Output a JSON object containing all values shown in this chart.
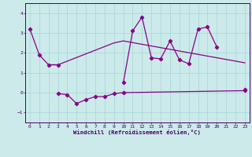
{
  "xlabel": "Windchill (Refroidissement éolien,°C)",
  "line1_x": [
    0,
    1,
    2,
    3,
    10,
    11,
    12,
    13,
    14,
    15,
    16,
    17,
    18,
    19,
    20,
    23
  ],
  "line1_y": [
    3.2,
    1.9,
    1.4,
    1.4,
    0.5,
    3.1,
    3.8,
    1.75,
    1.7,
    2.6,
    1.65,
    1.45,
    3.2,
    3.3,
    2.3,
    0.15
  ],
  "line2_x": [
    3,
    4,
    5,
    6,
    7,
    8,
    9,
    10,
    23
  ],
  "line2_y": [
    -0.05,
    -0.1,
    -0.55,
    -0.35,
    -0.2,
    -0.2,
    -0.05,
    0.0,
    0.1
  ],
  "line3_x": [
    2,
    3,
    9,
    10,
    23
  ],
  "line3_y": [
    1.4,
    1.4,
    2.5,
    2.6,
    1.5
  ],
  "color": "#880088",
  "bg_color": "#cceaea",
  "ylim": [
    -1.5,
    4.5
  ],
  "xlim": [
    -0.5,
    23.5
  ],
  "yticks": [
    -1,
    0,
    1,
    2,
    3,
    4
  ],
  "xticks": [
    0,
    1,
    2,
    3,
    4,
    5,
    6,
    7,
    8,
    9,
    10,
    11,
    12,
    13,
    14,
    15,
    16,
    17,
    18,
    19,
    20,
    21,
    22,
    23
  ]
}
